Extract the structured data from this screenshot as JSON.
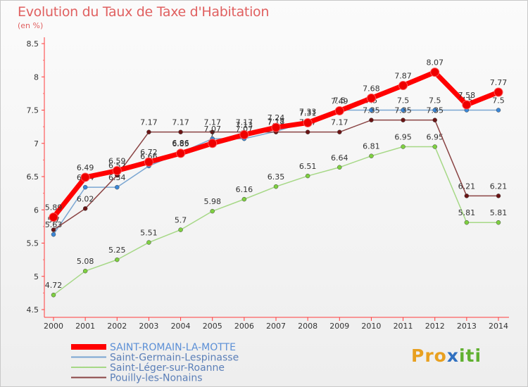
{
  "chart_data": {
    "type": "line",
    "title": "Evolution du Taux de Taxe d'Habitation",
    "subtitle": "(en %)",
    "ylim": [
      4.5,
      8.5
    ],
    "y_ticks": [
      "4.5",
      "5",
      "5.5",
      "6",
      "6.5",
      "7",
      "7.5",
      "8",
      "8.5"
    ],
    "categories": [
      "2000",
      "2001",
      "2002",
      "2003",
      "2004",
      "2005",
      "2006",
      "2007",
      "2008",
      "2009",
      "2010",
      "2011",
      "2012",
      "2013",
      "2014"
    ],
    "series": [
      {
        "name": "SAINT-ROMAIN-LA-MOTTE",
        "color": "#ff0000",
        "point_color": "#ee0000",
        "highlight": true,
        "values": [
          5.89,
          6.49,
          6.59,
          6.72,
          6.85,
          7.0,
          7.13,
          7.24,
          7.31,
          7.49,
          7.68,
          7.87,
          8.07,
          7.58,
          7.77
        ],
        "labels": [
          "5.89",
          "6.49",
          "6.59",
          "6.72",
          "6.85",
          "7",
          "7.13",
          "7.24",
          "7.31",
          "7.49",
          "7.68",
          "7.87",
          "8.07",
          "7.58",
          "7.77"
        ]
      },
      {
        "name": "Saint-Germain-Lespinasse",
        "color": "#7aa6d2",
        "point_color": "#3a86d6",
        "values": [
          5.63,
          6.34,
          6.34,
          6.66,
          6.86,
          7.07,
          7.07,
          7.18,
          7.33,
          7.5,
          7.5,
          7.5,
          7.5,
          7.5,
          7.5
        ],
        "labels": [
          "5.63",
          "6.34",
          "6.34",
          "6.66",
          "6.86",
          "7.07",
          "7.07",
          "7.18",
          "7.33",
          "7.5",
          "7.5",
          "7.5",
          "7.5",
          "7.5",
          "7.5"
        ]
      },
      {
        "name": "Saint-Léger-sur-Roanne",
        "color": "#a6d886",
        "point_color": "#7ed040",
        "values": [
          4.72,
          5.08,
          5.25,
          5.51,
          5.7,
          5.98,
          6.16,
          6.35,
          6.51,
          6.64,
          6.81,
          6.95,
          6.95,
          5.81,
          5.81
        ],
        "labels": [
          "4.72",
          "5.08",
          "5.25",
          "5.51",
          "5.7",
          "5.98",
          "6.16",
          "6.35",
          "6.51",
          "6.64",
          "6.81",
          "6.95",
          "6.95",
          "5.81",
          "5.81"
        ]
      },
      {
        "name": "Pouilly-les-Nonains",
        "color": "#8a4444",
        "point_color": "#6a1414",
        "values": [
          5.7,
          6.02,
          6.52,
          7.17,
          7.17,
          7.17,
          7.17,
          7.17,
          7.17,
          7.17,
          7.35,
          7.35,
          7.35,
          6.21,
          6.21
        ],
        "labels": [
          "5.7",
          "6.02",
          "6.52",
          "7.17",
          "7.17",
          "7.17",
          "7.17",
          "7.17",
          "7.17",
          "7.17",
          "7.35",
          "7.35",
          "7.35",
          "6.21",
          "6.21"
        ]
      }
    ],
    "grid": false,
    "legend": "bottom-left"
  },
  "branding": {
    "logo_parts": [
      "Pro",
      "x",
      "iti"
    ]
  }
}
